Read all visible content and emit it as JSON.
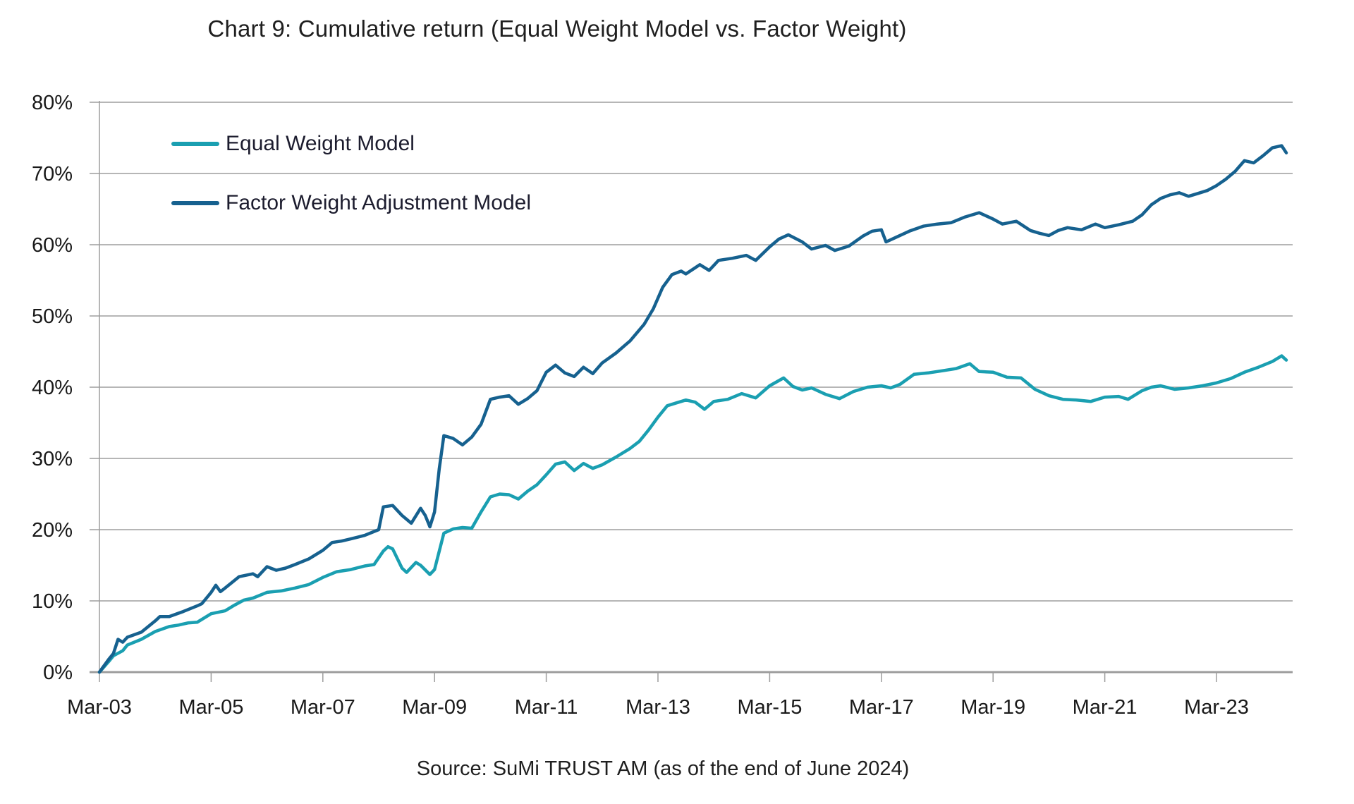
{
  "title": "Chart 9: Cumulative return (Equal Weight Model vs. Factor Weight)",
  "source": "Source: SuMi TRUST AM (as of the end of June 2024)",
  "colors": {
    "equal_weight_line": "#1A9FB1",
    "factor_weight_line": "#16618F",
    "gridline": "#9d9d9d",
    "axis": "#9d9d9d",
    "label_text": "#1a1a1a"
  },
  "chart_data": {
    "type": "line",
    "title": "Chart 9: Cumulative return (Equal Weight Model vs. Factor Weight)",
    "xlabel": "",
    "ylabel": "",
    "y_unit": "%",
    "ylim": [
      0,
      80
    ],
    "grid": "horizontal",
    "legend_position": "top-left-inside",
    "x_ticks": [
      {
        "label": "Mar-03",
        "month": 0
      },
      {
        "label": "Mar-05",
        "month": 24
      },
      {
        "label": "Mar-07",
        "month": 48
      },
      {
        "label": "Mar-09",
        "month": 72
      },
      {
        "label": "Mar-11",
        "month": 96
      },
      {
        "label": "Mar-13",
        "month": 120
      },
      {
        "label": "Mar-15",
        "month": 144
      },
      {
        "label": "Mar-17",
        "month": 168
      },
      {
        "label": "Mar-19",
        "month": 192
      },
      {
        "label": "Mar-21",
        "month": 216
      },
      {
        "label": "Mar-23",
        "month": 240
      }
    ],
    "x_range_months": [
      0,
      255
    ],
    "x_start": "Mar-03",
    "x_end": "Jun-24",
    "y_ticks": [
      {
        "label": "0%",
        "value": 0
      },
      {
        "label": "10%",
        "value": 10
      },
      {
        "label": "20%",
        "value": 20
      },
      {
        "label": "30%",
        "value": 30
      },
      {
        "label": "40%",
        "value": 40
      },
      {
        "label": "50%",
        "value": 50
      },
      {
        "label": "60%",
        "value": 60
      },
      {
        "label": "70%",
        "value": 70
      },
      {
        "label": "80%",
        "value": 80
      }
    ],
    "series": [
      {
        "name": "Equal Weight Model",
        "color": "#1A9FB1",
        "points": [
          [
            0,
            0
          ],
          [
            2,
            1.5
          ],
          [
            3,
            2.3
          ],
          [
            5,
            3.0
          ],
          [
            6,
            3.8
          ],
          [
            9,
            4.6
          ],
          [
            12,
            5.7
          ],
          [
            15,
            6.4
          ],
          [
            17,
            6.6
          ],
          [
            19,
            6.9
          ],
          [
            21,
            7.0
          ],
          [
            24,
            8.2
          ],
          [
            27,
            8.6
          ],
          [
            29,
            9.4
          ],
          [
            31,
            10.1
          ],
          [
            33,
            10.4
          ],
          [
            36,
            11.2
          ],
          [
            39,
            11.4
          ],
          [
            42,
            11.8
          ],
          [
            45,
            12.3
          ],
          [
            48,
            13.3
          ],
          [
            51,
            14.1
          ],
          [
            54,
            14.4
          ],
          [
            57,
            14.9
          ],
          [
            59,
            15.1
          ],
          [
            61,
            17.0
          ],
          [
            62,
            17.6
          ],
          [
            63,
            17.3
          ],
          [
            65,
            14.6
          ],
          [
            66,
            14.0
          ],
          [
            68,
            15.4
          ],
          [
            69,
            15.0
          ],
          [
            71,
            13.7
          ],
          [
            72,
            14.4
          ],
          [
            74,
            19.5
          ],
          [
            76,
            20.1
          ],
          [
            78,
            20.3
          ],
          [
            80,
            20.2
          ],
          [
            82,
            22.5
          ],
          [
            84,
            24.6
          ],
          [
            86,
            25.0
          ],
          [
            88,
            24.9
          ],
          [
            90,
            24.3
          ],
          [
            92,
            25.4
          ],
          [
            94,
            26.3
          ],
          [
            96,
            27.7
          ],
          [
            98,
            29.2
          ],
          [
            100,
            29.5
          ],
          [
            102,
            28.3
          ],
          [
            104,
            29.3
          ],
          [
            106,
            28.6
          ],
          [
            108,
            29.1
          ],
          [
            111,
            30.2
          ],
          [
            114,
            31.4
          ],
          [
            116,
            32.4
          ],
          [
            118,
            34.0
          ],
          [
            120,
            35.8
          ],
          [
            122,
            37.4
          ],
          [
            124,
            37.8
          ],
          [
            126,
            38.2
          ],
          [
            128,
            37.9
          ],
          [
            130,
            36.9
          ],
          [
            132,
            38.0
          ],
          [
            135,
            38.3
          ],
          [
            138,
            39.1
          ],
          [
            141,
            38.5
          ],
          [
            144,
            40.2
          ],
          [
            147,
            41.3
          ],
          [
            149,
            40.1
          ],
          [
            151,
            39.6
          ],
          [
            153,
            39.9
          ],
          [
            156,
            39.0
          ],
          [
            159,
            38.4
          ],
          [
            162,
            39.4
          ],
          [
            165,
            40.0
          ],
          [
            168,
            40.2
          ],
          [
            170,
            39.9
          ],
          [
            172,
            40.4
          ],
          [
            175,
            41.8
          ],
          [
            178,
            42.0
          ],
          [
            181,
            42.3
          ],
          [
            184,
            42.6
          ],
          [
            187,
            43.3
          ],
          [
            189,
            42.2
          ],
          [
            192,
            42.1
          ],
          [
            195,
            41.4
          ],
          [
            198,
            41.3
          ],
          [
            201,
            39.7
          ],
          [
            204,
            38.8
          ],
          [
            207,
            38.3
          ],
          [
            210,
            38.2
          ],
          [
            213,
            38.0
          ],
          [
            216,
            38.6
          ],
          [
            219,
            38.7
          ],
          [
            221,
            38.3
          ],
          [
            224,
            39.5
          ],
          [
            226,
            40.0
          ],
          [
            228,
            40.2
          ],
          [
            231,
            39.7
          ],
          [
            234,
            39.9
          ],
          [
            237,
            40.2
          ],
          [
            240,
            40.6
          ],
          [
            243,
            41.2
          ],
          [
            246,
            42.1
          ],
          [
            249,
            42.8
          ],
          [
            252,
            43.6
          ],
          [
            254,
            44.4
          ],
          [
            255,
            43.8
          ]
        ]
      },
      {
        "name": "Factor Weight Adjustment Model",
        "color": "#16618F",
        "points": [
          [
            0,
            0
          ],
          [
            2,
            1.8
          ],
          [
            3,
            2.6
          ],
          [
            4,
            4.6
          ],
          [
            5,
            4.2
          ],
          [
            6,
            4.9
          ],
          [
            9,
            5.6
          ],
          [
            12,
            7.2
          ],
          [
            13,
            7.8
          ],
          [
            15,
            7.8
          ],
          [
            18,
            8.5
          ],
          [
            21,
            9.3
          ],
          [
            22,
            9.6
          ],
          [
            24,
            11.2
          ],
          [
            25,
            12.2
          ],
          [
            26,
            11.3
          ],
          [
            27,
            11.8
          ],
          [
            30,
            13.4
          ],
          [
            33,
            13.8
          ],
          [
            34,
            13.4
          ],
          [
            36,
            14.8
          ],
          [
            38,
            14.3
          ],
          [
            40,
            14.6
          ],
          [
            42,
            15.1
          ],
          [
            45,
            15.9
          ],
          [
            48,
            17.1
          ],
          [
            50,
            18.2
          ],
          [
            52,
            18.4
          ],
          [
            54,
            18.7
          ],
          [
            57,
            19.2
          ],
          [
            60,
            20.0
          ],
          [
            61,
            23.2
          ],
          [
            63,
            23.4
          ],
          [
            65,
            22.0
          ],
          [
            67,
            20.9
          ],
          [
            69,
            23.0
          ],
          [
            70,
            22.0
          ],
          [
            71,
            20.4
          ],
          [
            72,
            22.5
          ],
          [
            73,
            28.5
          ],
          [
            74,
            33.2
          ],
          [
            76,
            32.8
          ],
          [
            78,
            31.9
          ],
          [
            80,
            33.0
          ],
          [
            82,
            34.8
          ],
          [
            84,
            38.3
          ],
          [
            86,
            38.6
          ],
          [
            88,
            38.8
          ],
          [
            90,
            37.6
          ],
          [
            92,
            38.4
          ],
          [
            94,
            39.5
          ],
          [
            96,
            42.1
          ],
          [
            98,
            43.1
          ],
          [
            100,
            42.0
          ],
          [
            102,
            41.5
          ],
          [
            104,
            42.8
          ],
          [
            106,
            41.9
          ],
          [
            108,
            43.4
          ],
          [
            111,
            44.8
          ],
          [
            114,
            46.5
          ],
          [
            117,
            48.8
          ],
          [
            119,
            51.0
          ],
          [
            121,
            54.0
          ],
          [
            123,
            55.8
          ],
          [
            125,
            56.3
          ],
          [
            126,
            55.9
          ],
          [
            129,
            57.2
          ],
          [
            131,
            56.4
          ],
          [
            133,
            57.8
          ],
          [
            136,
            58.1
          ],
          [
            139,
            58.5
          ],
          [
            141,
            57.8
          ],
          [
            144,
            59.7
          ],
          [
            146,
            60.8
          ],
          [
            148,
            61.4
          ],
          [
            151,
            60.4
          ],
          [
            153,
            59.4
          ],
          [
            156,
            59.9
          ],
          [
            158,
            59.2
          ],
          [
            161,
            59.8
          ],
          [
            164,
            61.2
          ],
          [
            166,
            61.9
          ],
          [
            168,
            62.1
          ],
          [
            169,
            60.4
          ],
          [
            171,
            61.0
          ],
          [
            174,
            61.9
          ],
          [
            177,
            62.6
          ],
          [
            180,
            62.9
          ],
          [
            183,
            63.1
          ],
          [
            186,
            63.9
          ],
          [
            189,
            64.5
          ],
          [
            192,
            63.6
          ],
          [
            194,
            62.9
          ],
          [
            197,
            63.3
          ],
          [
            200,
            62.0
          ],
          [
            202,
            61.6
          ],
          [
            204,
            61.3
          ],
          [
            206,
            62.0
          ],
          [
            208,
            62.4
          ],
          [
            211,
            62.1
          ],
          [
            214,
            62.9
          ],
          [
            216,
            62.4
          ],
          [
            219,
            62.8
          ],
          [
            222,
            63.3
          ],
          [
            224,
            64.2
          ],
          [
            226,
            65.6
          ],
          [
            228,
            66.5
          ],
          [
            230,
            67.0
          ],
          [
            232,
            67.3
          ],
          [
            234,
            66.8
          ],
          [
            236,
            67.2
          ],
          [
            238,
            67.6
          ],
          [
            240,
            68.3
          ],
          [
            242,
            69.2
          ],
          [
            244,
            70.3
          ],
          [
            246,
            71.8
          ],
          [
            248,
            71.5
          ],
          [
            250,
            72.5
          ],
          [
            252,
            73.6
          ],
          [
            254,
            73.9
          ],
          [
            255,
            72.9
          ]
        ]
      }
    ]
  }
}
